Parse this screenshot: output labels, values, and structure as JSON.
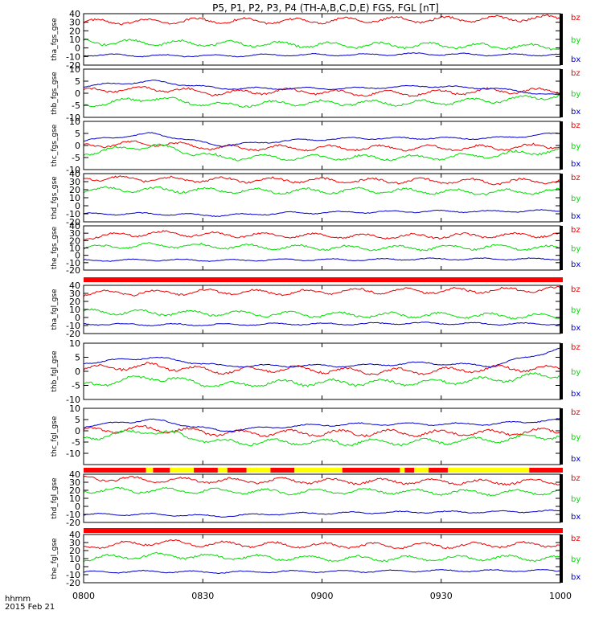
{
  "title": "P5, P1, P2, P3, P4 (TH-A,B,C,D,E) FGS, FGL [nT]",
  "footer": {
    "line1": "hhmm",
    "line2": "2015 Feb 21"
  },
  "colors": {
    "bx": "#0000cc",
    "by": "#00dd00",
    "bz": "#ee0000",
    "flag_red": "#ff0000",
    "flag_yellow": "#ffff00"
  },
  "chart_data": [
    {
      "type": "line",
      "panel": "tha_fgs_gse",
      "ylabel": "tha_fgs_gse",
      "ylim": [
        -20,
        40
      ],
      "yticks": [
        "40",
        "30",
        "20",
        "10",
        "0",
        "-10",
        "-20"
      ],
      "series": [
        {
          "name": "bz",
          "values": [
            30,
            31,
            32,
            31,
            33,
            33,
            34,
            35
          ]
        },
        {
          "name": "by",
          "values": [
            7,
            6,
            5,
            4,
            3,
            3,
            2,
            1
          ]
        },
        {
          "name": "bx",
          "values": [
            -8,
            -9,
            -9,
            -8,
            -8,
            -7,
            -8,
            -8
          ]
        }
      ]
    },
    {
      "type": "line",
      "panel": "thb_fgs_gse",
      "ylabel": "thb_fgs_gse",
      "ylim": [
        -10,
        10
      ],
      "yticks": [
        "10",
        "5",
        "0",
        "-5",
        "-10"
      ],
      "series": [
        {
          "name": "bz",
          "values": [
            1,
            2,
            0,
            1,
            0,
            0,
            1,
            1
          ]
        },
        {
          "name": "by",
          "values": [
            -5,
            -2,
            -5,
            -4,
            -4,
            -4,
            -3,
            -1
          ]
        },
        {
          "name": "bx",
          "values": [
            3,
            5,
            2,
            2,
            2,
            3,
            2,
            -1
          ]
        }
      ]
    },
    {
      "type": "line",
      "panel": "thc_fgs_gse",
      "ylabel": "thc_fgs_gse",
      "ylim": [
        -10,
        10
      ],
      "yticks": [
        "10",
        "5",
        "0",
        "-5",
        "-10"
      ],
      "series": [
        {
          "name": "bz",
          "values": [
            0,
            1,
            -1,
            -1,
            -1,
            -1,
            -1,
            0
          ]
        },
        {
          "name": "by",
          "values": [
            -3,
            0,
            -5,
            -5,
            -5,
            -5,
            -4,
            -2
          ]
        },
        {
          "name": "bx",
          "values": [
            2,
            5,
            0,
            2,
            3,
            3,
            3,
            5
          ]
        }
      ]
    },
    {
      "type": "line",
      "panel": "thd_fgs_gse",
      "ylabel": "thd_fgs_gse",
      "ylim": [
        -20,
        40
      ],
      "yticks": [
        "40",
        "30",
        "20",
        "10",
        "0",
        "-10",
        "-20"
      ],
      "series": [
        {
          "name": "bz",
          "values": [
            35,
            33,
            32,
            32,
            31,
            31,
            30,
            31
          ]
        },
        {
          "name": "by",
          "values": [
            20,
            20,
            19,
            18,
            19,
            18,
            17,
            18
          ]
        },
        {
          "name": "bx",
          "values": [
            -10,
            -10,
            -12,
            -9,
            -8,
            -7,
            -7,
            -6
          ]
        }
      ]
    },
    {
      "type": "line",
      "panel": "the_fgs_gse",
      "ylabel": "the_fgs_gse",
      "ylim": [
        -20,
        40
      ],
      "yticks": [
        "40",
        "30",
        "20",
        "10",
        "0",
        "-10",
        "-20"
      ],
      "series": [
        {
          "name": "bz",
          "values": [
            25,
            30,
            28,
            27,
            26,
            26,
            27,
            28
          ]
        },
        {
          "name": "by",
          "values": [
            10,
            14,
            12,
            11,
            10,
            10,
            11,
            10
          ]
        },
        {
          "name": "bx",
          "values": [
            -7,
            -6,
            -7,
            -6,
            -6,
            -5,
            -5,
            -5
          ]
        }
      ]
    },
    {
      "type": "line",
      "panel": "tha_fgl_gse",
      "ylabel": "tha_fgl_gse",
      "ylim": [
        -20,
        40
      ],
      "yticks": [
        "40",
        "30",
        "20",
        "10",
        "0",
        "-10",
        "-20"
      ],
      "series": [
        {
          "name": "bz",
          "values": [
            30,
            31,
            32,
            31,
            33,
            33,
            34,
            35
          ]
        },
        {
          "name": "by",
          "values": [
            7,
            6,
            5,
            4,
            3,
            3,
            2,
            1
          ]
        },
        {
          "name": "bx",
          "values": [
            -8,
            -9,
            -9,
            -8,
            -8,
            -7,
            -8,
            -8
          ]
        }
      ]
    },
    {
      "type": "line",
      "panel": "thb_fgl_gse",
      "ylabel": "thb_fgl_gse",
      "ylim": [
        -10,
        10
      ],
      "yticks": [
        "10",
        "5",
        "0",
        "-5",
        "-10"
      ],
      "series": [
        {
          "name": "bz",
          "values": [
            1,
            2,
            0,
            1,
            0,
            0,
            1,
            1
          ]
        },
        {
          "name": "by",
          "values": [
            -5,
            -2,
            -5,
            -4,
            -4,
            -4,
            -3,
            -1
          ]
        },
        {
          "name": "bx",
          "values": [
            3,
            5,
            2,
            2,
            2,
            3,
            2,
            8
          ]
        }
      ]
    },
    {
      "type": "line",
      "panel": "thc_fgl_gse",
      "ylabel": "thc_fgl_gse",
      "ylim": [
        -15,
        10
      ],
      "yticks": [
        "10",
        "5",
        "0",
        "-5",
        "-10"
      ],
      "series": [
        {
          "name": "bz",
          "values": [
            0,
            1,
            -1,
            -1,
            -1,
            -1,
            -1,
            0
          ]
        },
        {
          "name": "by",
          "values": [
            -3,
            0,
            -5,
            -5,
            -5,
            -5,
            -4,
            -2
          ]
        },
        {
          "name": "bx",
          "values": [
            2,
            5,
            0,
            2,
            3,
            3,
            3,
            5
          ]
        }
      ]
    },
    {
      "type": "line",
      "panel": "thd_fgl_gse",
      "ylabel": "thd_fgl_gse",
      "ylim": [
        -20,
        40
      ],
      "yticks": [
        "40",
        "30",
        "20",
        "10",
        "0",
        "-10",
        "-20"
      ],
      "series": [
        {
          "name": "bz",
          "values": [
            35,
            33,
            32,
            32,
            31,
            31,
            30,
            31
          ]
        },
        {
          "name": "by",
          "values": [
            20,
            20,
            19,
            18,
            19,
            18,
            17,
            18
          ]
        },
        {
          "name": "bx",
          "values": [
            -10,
            -10,
            -12,
            -9,
            -8,
            -7,
            -7,
            -6
          ]
        }
      ]
    },
    {
      "type": "line",
      "panel": "the_fgl_gse",
      "ylabel": "the_fgl_gse",
      "ylim": [
        -20,
        40
      ],
      "yticks": [
        "40",
        "30",
        "20",
        "10",
        "0",
        "-10",
        "-20"
      ],
      "series": [
        {
          "name": "bz",
          "values": [
            25,
            30,
            28,
            27,
            26,
            26,
            27,
            28
          ]
        },
        {
          "name": "by",
          "values": [
            10,
            14,
            12,
            11,
            10,
            10,
            11,
            10
          ]
        },
        {
          "name": "bx",
          "values": [
            -7,
            -6,
            -7,
            -6,
            -6,
            -5,
            -5,
            -5
          ]
        }
      ]
    }
  ],
  "x_axis": {
    "ticks": [
      "0800",
      "0830",
      "0900",
      "0930",
      "1000"
    ]
  },
  "legend": [
    "bz",
    "by",
    "bx"
  ]
}
